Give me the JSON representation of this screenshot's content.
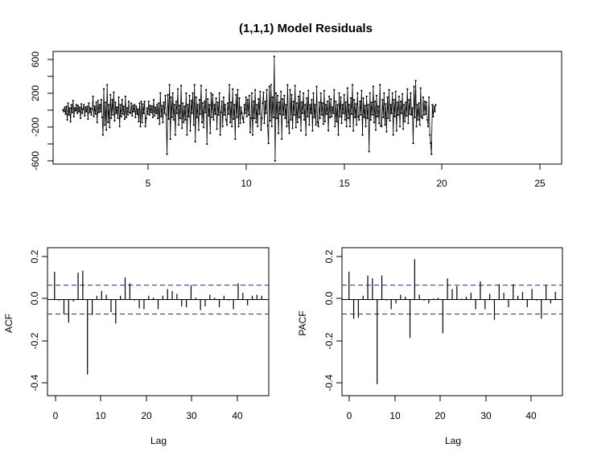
{
  "chart_data": [
    {
      "type": "line",
      "title": "(1,1,1) Model Residuals",
      "xlabel": "",
      "ylabel": "",
      "xlim": [
        0.5,
        26
      ],
      "ylim": [
        -650,
        700
      ],
      "x_ticks": [
        "5",
        "10",
        "15",
        "20",
        "25"
      ],
      "y_ticks": [
        "-600",
        "-200",
        "200",
        "600"
      ],
      "x_start": 1,
      "x_step": 0.0417,
      "values": [
        0,
        -20,
        30,
        -50,
        40,
        -120,
        80,
        -60,
        20,
        -140,
        60,
        -30,
        110,
        -80,
        20,
        -10,
        60,
        -40,
        50,
        -20,
        30,
        -100,
        70,
        -40,
        10,
        60,
        -70,
        30,
        -20,
        40,
        -110,
        80,
        -30,
        20,
        -60,
        10,
        160,
        -80,
        40,
        -50,
        90,
        -150,
        110,
        -30,
        60,
        -20,
        120,
        -90,
        -300,
        250,
        -180,
        90,
        -240,
        300,
        -150,
        60,
        -210,
        180,
        -100,
        120,
        -60,
        210,
        -130,
        90,
        -40,
        30,
        -100,
        150,
        -200,
        60,
        -80,
        120,
        -50,
        40,
        -110,
        160,
        -90,
        20,
        -60,
        100,
        -30,
        -40,
        80,
        -70,
        50,
        -20,
        60,
        -90,
        40,
        -50,
        10,
        -140,
        80,
        -200,
        100,
        -150,
        70,
        -40,
        100,
        -200,
        -100,
        20,
        -50,
        100,
        -60,
        50,
        -30,
        40,
        -90,
        120,
        -70,
        30,
        -40,
        60,
        -100,
        80,
        -170,
        200,
        -80,
        50,
        -150,
        90,
        -40,
        170,
        -60,
        -530,
        180,
        -110,
        300,
        -350,
        150,
        -90,
        200,
        -120,
        60,
        -300,
        100,
        -40,
        250,
        -180,
        50,
        -100,
        290,
        -220,
        80,
        -150,
        40,
        -120,
        200,
        -300,
        60,
        -80,
        170,
        -250,
        110,
        -40,
        200,
        -180,
        300,
        -380,
        150,
        -90,
        60,
        -240,
        120,
        -50,
        290,
        -150,
        80,
        -210,
        100,
        -30,
        240,
        -410,
        130,
        -70,
        60,
        -280,
        200,
        -90,
        180,
        -120,
        60,
        -50,
        140,
        -230,
        90,
        -60,
        200,
        -300,
        -30,
        100,
        -200,
        150,
        -60,
        60,
        -120,
        -180,
        80,
        -50,
        300,
        -150,
        90,
        -200,
        250,
        -110,
        60,
        -350,
        180,
        -90,
        240,
        -200,
        140,
        -160,
        30,
        -40,
        -100,
        -150,
        60,
        -40,
        150,
        -80,
        120,
        -60,
        170,
        -270,
        -100,
        200,
        -300,
        100,
        -100,
        240,
        -150,
        60,
        -200,
        130,
        -50,
        220,
        -240,
        -100,
        80,
        210,
        -160,
        100,
        -40,
        240,
        -190,
        -400,
        280,
        -130,
        300,
        -200,
        150,
        -90,
        640,
        -610,
        200,
        -100,
        170,
        -280,
        90,
        -50,
        220,
        -350,
        130,
        -60,
        170,
        -100,
        60,
        -200,
        300,
        -150,
        -280,
        240,
        -120,
        180,
        -220,
        100,
        -60,
        290,
        -210,
        80,
        -150,
        160,
        -90,
        220,
        -250,
        90,
        -40,
        200,
        -120,
        60,
        -300,
        140,
        -80,
        230,
        -180,
        60,
        -40,
        120,
        -250,
        200,
        -90,
        60,
        -180,
        280,
        -150,
        -200,
        90,
        -100,
        200,
        -60,
        80,
        -170,
        230,
        -140,
        60,
        -50,
        100,
        -250,
        160,
        -90,
        130,
        -80,
        30,
        -40,
        240,
        -200,
        100,
        -140,
        60,
        -300,
        200,
        -80,
        150,
        -160,
        60,
        -40,
        180,
        -120,
        90,
        -200,
        260,
        -100,
        60,
        -200,
        140,
        -50,
        300,
        -250,
        120,
        -90,
        70,
        -180,
        200,
        -80,
        -120,
        100,
        -60,
        230,
        -300,
        140,
        -90,
        50,
        -200,
        160,
        -100,
        60,
        -500,
        200,
        -120,
        90,
        -60,
        280,
        -150,
        100,
        -240,
        170,
        -80,
        40,
        -160,
        300,
        -190,
        -200,
        120,
        -90,
        200,
        -180,
        70,
        -260,
        150,
        -100,
        240,
        -130,
        60,
        -40,
        200,
        -300,
        120,
        -80,
        220,
        -250,
        90,
        -60,
        160,
        -200,
        100,
        -40,
        190,
        -230,
        60,
        -140,
        90,
        -70,
        250,
        -160,
        120,
        -50,
        200,
        -60,
        20,
        -400,
        280,
        -90,
        350,
        -200,
        60,
        -120,
        80,
        -180,
        260,
        -80,
        -100,
        150,
        -60,
        100,
        -50,
        90,
        -120,
        -200,
        150,
        -300,
        -400,
        -530,
        60,
        -80,
        40,
        -20,
        60
      ]
    },
    {
      "type": "bar",
      "title": "",
      "xlabel": "Lag",
      "ylabel": "ACF",
      "xlim": [
        -0.5,
        46.5
      ],
      "ylim": [
        -0.5,
        0.27
      ],
      "x_ticks": [
        "0",
        "10",
        "20",
        "30",
        "40"
      ],
      "y_ticks": [
        "-0.4",
        "-0.2",
        "0.0",
        "0.2"
      ],
      "confidence_bound": 0.075,
      "lags": [
        1,
        2,
        3,
        4,
        5,
        6,
        7,
        8,
        9,
        10,
        11,
        12,
        13,
        14,
        15,
        16,
        17,
        18,
        19,
        20,
        21,
        22,
        23,
        24,
        25,
        26,
        27,
        28,
        29,
        30,
        31,
        32,
        33,
        34,
        35,
        36,
        37,
        38,
        39,
        40,
        41,
        42,
        43,
        44,
        45
      ],
      "values": [
        0.145,
        -0.005,
        -0.075,
        -0.12,
        -0.01,
        0.14,
        0.15,
        -0.39,
        -0.08,
        0.02,
        0.045,
        0.025,
        -0.065,
        -0.125,
        0.02,
        0.115,
        0.085,
        -0.005,
        -0.045,
        -0.05,
        0.02,
        0.01,
        -0.05,
        0.02,
        0.055,
        0.045,
        0.03,
        -0.035,
        -0.04,
        0.075,
        0.01,
        -0.055,
        -0.035,
        0.025,
        0.01,
        -0.04,
        0.02,
        -0.005,
        -0.05,
        0.085,
        0.035,
        -0.03,
        0.02,
        0.025,
        0.02
      ]
    },
    {
      "type": "bar",
      "title": "",
      "xlabel": "Lag",
      "ylabel": "PACF",
      "xlim": [
        -0.5,
        46.5
      ],
      "ylim": [
        -0.5,
        0.27
      ],
      "x_ticks": [
        "0",
        "10",
        "20",
        "30",
        "40"
      ],
      "y_ticks": [
        "-0.4",
        "-0.2",
        "0.0",
        "0.2"
      ],
      "confidence_bound": 0.075,
      "lags": [
        1,
        2,
        3,
        4,
        5,
        6,
        7,
        8,
        9,
        10,
        11,
        12,
        13,
        14,
        15,
        16,
        17,
        18,
        19,
        20,
        21,
        22,
        23,
        24,
        25,
        26,
        27,
        28,
        29,
        30,
        31,
        32,
        33,
        34,
        35,
        36,
        37,
        38,
        39,
        40,
        41,
        42,
        43,
        44,
        45
      ],
      "values": [
        0.145,
        -0.1,
        -0.095,
        0.02,
        0.125,
        0.11,
        -0.44,
        0.125,
        -0.005,
        -0.05,
        -0.02,
        0.025,
        0.015,
        -0.2,
        0.21,
        0.025,
        -0.005,
        -0.02,
        0.005,
        0.01,
        -0.175,
        0.11,
        0.055,
        0.07,
        0.005,
        0.015,
        0.035,
        -0.05,
        0.095,
        -0.05,
        0.03,
        -0.105,
        0.08,
        0.035,
        -0.04,
        0.08,
        0.02,
        0.04,
        -0.04,
        0.055,
        -0.005,
        -0.1,
        0.075,
        -0.02,
        0.04
      ]
    }
  ]
}
